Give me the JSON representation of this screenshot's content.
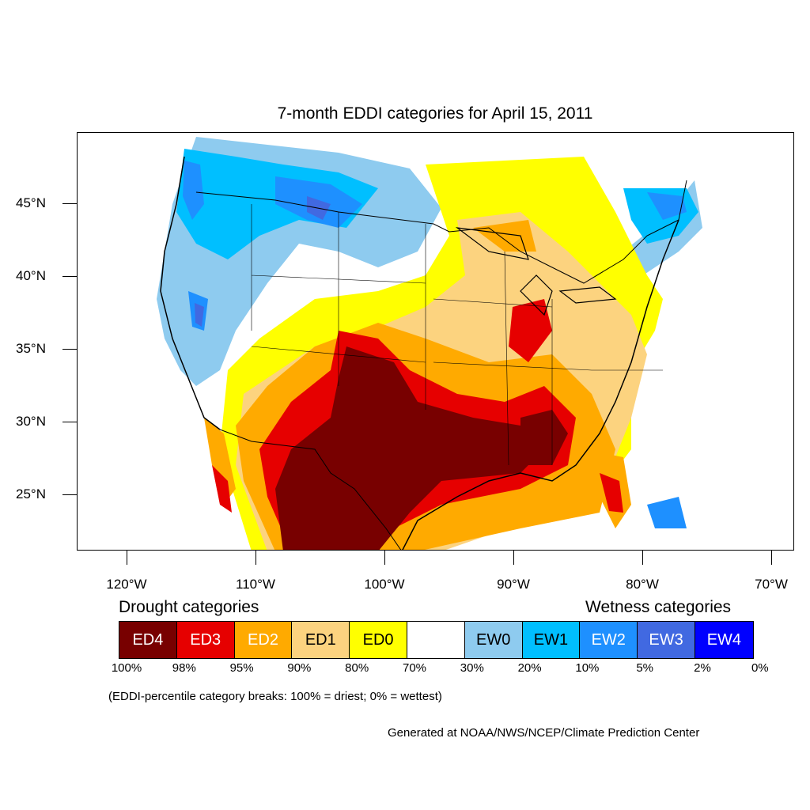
{
  "title": "7-month EDDI categories for April 15, 2011",
  "map": {
    "lat_labels": [
      "45°N",
      "40°N",
      "35°N",
      "30°N",
      "25°N"
    ],
    "lon_labels": [
      "120°W",
      "110°W",
      "100°W",
      "90°W",
      "80°W",
      "70°W"
    ]
  },
  "legend": {
    "drought_heading": "Drought categories",
    "wetness_heading": "Wetness categories",
    "categories": [
      {
        "label": "ED4",
        "color": "#780000",
        "text_color": "#ffffff"
      },
      {
        "label": "ED3",
        "color": "#e60000",
        "text_color": "#ffffff"
      },
      {
        "label": "ED2",
        "color": "#ffaa00",
        "text_color": "#ffffff"
      },
      {
        "label": "ED1",
        "color": "#fcd37f",
        "text_color": "#000000"
      },
      {
        "label": "ED0",
        "color": "#ffff00",
        "text_color": "#000000"
      },
      {
        "label": "",
        "color": "#ffffff",
        "text_color": "#000000"
      },
      {
        "label": "EW0",
        "color": "#8ecbef",
        "text_color": "#000000"
      },
      {
        "label": "EW1",
        "color": "#00bfff",
        "text_color": "#000000"
      },
      {
        "label": "EW2",
        "color": "#1e90ff",
        "text_color": "#ffffff"
      },
      {
        "label": "EW3",
        "color": "#4169e1",
        "text_color": "#ffffff"
      },
      {
        "label": "EW4",
        "color": "#0000ff",
        "text_color": "#ffffff"
      }
    ],
    "breaks": [
      "100%",
      "98%",
      "95%",
      "90%",
      "80%",
      "70%",
      "30%",
      "20%",
      "10%",
      "5%",
      "2%",
      "0%"
    ]
  },
  "note": "(EDDI-percentile category breaks: 100% = driest; 0% = wettest)",
  "credit": "Generated at NOAA/NWS/NCEP/Climate Prediction Center"
}
